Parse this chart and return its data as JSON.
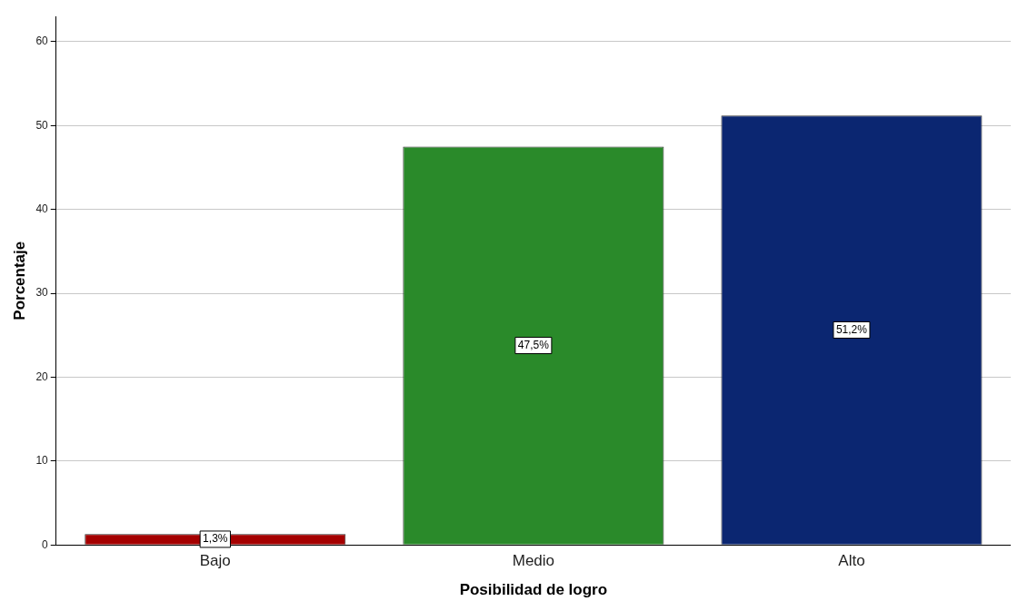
{
  "chart_data": {
    "type": "bar",
    "xlabel": "Posibilidad de logro",
    "ylabel": "Porcentaje",
    "categories": [
      "Bajo",
      "Medio",
      "Alto"
    ],
    "values": [
      1.3,
      47.5,
      51.2
    ],
    "colors": [
      "#a50000",
      "#2a8a2a",
      "#0b2671"
    ],
    "value_labels": [
      "1,3%",
      "47,5%",
      "51,2%"
    ],
    "ylim": [
      0,
      63
    ],
    "yticks": [
      0,
      10,
      20,
      30,
      40,
      50,
      60
    ],
    "grid": "y",
    "legend": false
  }
}
